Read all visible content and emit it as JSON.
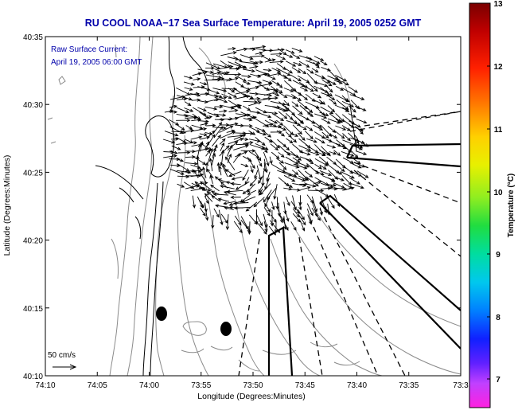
{
  "title": "RU COOL  NOAA−17  Sea Surface Temperature:  April 19, 2005 0252 GMT",
  "annotation": {
    "line1": "Raw Surface Current:",
    "line2": "April 19, 2005 06:00 GMT"
  },
  "scale_label": "50 cm/s",
  "xlabel": "Longitude (Degrees:Minutes)",
  "ylabel": "Latitude (Degrees:Minutes)",
  "colorbar": {
    "label": "Temperature (°C)",
    "ticks": [
      "13",
      "12",
      "11",
      "10",
      "9",
      "8",
      "7"
    ]
  },
  "x_ticks": [
    "74:10",
    "74:05",
    "74:00",
    "73:55",
    "73:50",
    "73:45",
    "73:40",
    "73:35",
    "73:3"
  ],
  "y_ticks": [
    "40:35",
    "40:30",
    "40:25",
    "40:20",
    "40:15",
    "40:10"
  ],
  "colors": {
    "title": "#0000aa",
    "annotation": "#0000aa",
    "coast": "#000000",
    "bathymetry": "#888888",
    "arrows": "#000000"
  },
  "chart_data": {
    "type": "map",
    "x_axis": {
      "label": "Longitude (Degrees:Minutes)",
      "range": [
        "74:10",
        "73:30"
      ]
    },
    "y_axis": {
      "label": "Latitude (Degrees:Minutes)",
      "range": [
        "40:10",
        "40:35"
      ]
    },
    "colorbar_range": [
      6.5,
      13
    ],
    "layers": [
      "coastline",
      "bathymetry contours",
      "surface current vectors",
      "radar coverage boundaries",
      "sample sites"
    ]
  }
}
